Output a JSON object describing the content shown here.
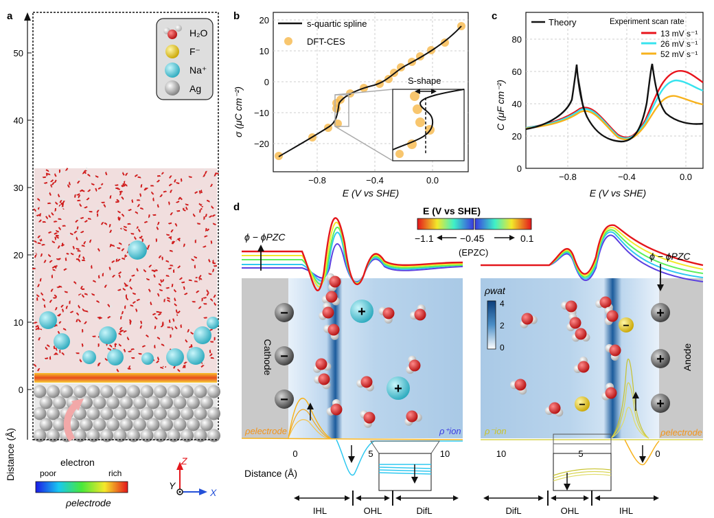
{
  "panel_a": {
    "letter": "a",
    "ylabel": "Distance (Å)",
    "yticks": [
      "0",
      "10",
      "20",
      "30",
      "40",
      "50"
    ],
    "legend": [
      {
        "label": "H₂O",
        "icon": "water-molecule-icon"
      },
      {
        "label": "F⁻",
        "color": "#f2d22c"
      },
      {
        "label": "Na⁺",
        "color": "#46cfe0"
      },
      {
        "label": "Ag",
        "color": "#d9d9d9"
      }
    ],
    "electron_label": "electron",
    "colorbar": {
      "low": "poor",
      "high": "rich",
      "label": "ρelectrode"
    },
    "axes": {
      "z": "Z",
      "y": "Y",
      "x": "X"
    }
  },
  "panel_b": {
    "letter": "b",
    "xlabel": "E (V vs SHE)",
    "ylabel": "σ (μC cm⁻²)",
    "xticks": [
      "−0.8",
      "−0.4",
      "0.0"
    ],
    "yticks": [
      "20",
      "10",
      "0",
      "−10",
      "−20"
    ],
    "legend_line": "s-quartic spline",
    "legend_points": "DFT-CES",
    "inset_label": "S-shape"
  },
  "panel_c": {
    "letter": "c",
    "xlabel": "E (V vs SHE)",
    "ylabel": "C (μF cm⁻²)",
    "xticks": [
      "−0.8",
      "−0.4",
      "0.0"
    ],
    "yticks": [
      "80",
      "60",
      "40",
      "20",
      "0"
    ],
    "legend_theory": "Theory",
    "legend_title": "Experiment scan rate",
    "series": [
      {
        "name": "13 mV s⁻¹",
        "color": "#e8131b"
      },
      {
        "name": "26 mV s⁻¹",
        "color": "#37e3ee"
      },
      {
        "name": "52 mV s⁻¹",
        "color": "#f7b21c"
      }
    ]
  },
  "panel_d": {
    "letter": "d",
    "colorbar_title": "E (V vs SHE)",
    "colorbar_ticks": [
      "−1.1",
      "−0.45",
      "0.1"
    ],
    "colorbar_pzc": "(EPZC)",
    "phi_label": "ϕ − ϕPZC",
    "rho_wat_label": "ρwat",
    "rho_wat_ticks": [
      "4",
      "2",
      "0"
    ],
    "cathode": "Cathode",
    "anode": "Anode",
    "rho_electrode": "ρelectrode",
    "rho_ion_plus": "ρ⁺ion",
    "rho_ion_minus": "ρ⁻ion",
    "distance_label": "Distance (Å)",
    "left_ticks": [
      "0",
      "5",
      "10"
    ],
    "right_ticks": [
      "10",
      "5",
      "0"
    ],
    "left_regions": [
      "IHL",
      "OHL",
      "DifL"
    ],
    "right_regions": [
      "DifL",
      "OHL",
      "IHL"
    ]
  }
}
